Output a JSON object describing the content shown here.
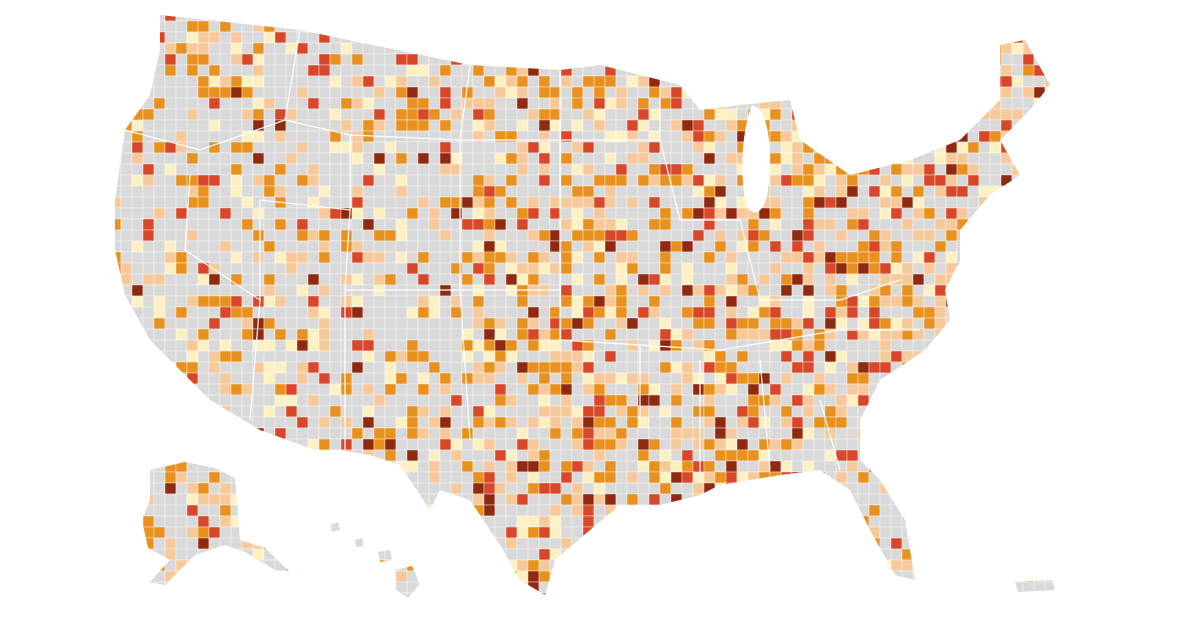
{
  "map": {
    "colors": [
      "#d9d9d9",
      "#fdf0c2",
      "#f7c99a",
      "#e8911e",
      "#d9472a",
      "#8f2a10"
    ]
  }
}
